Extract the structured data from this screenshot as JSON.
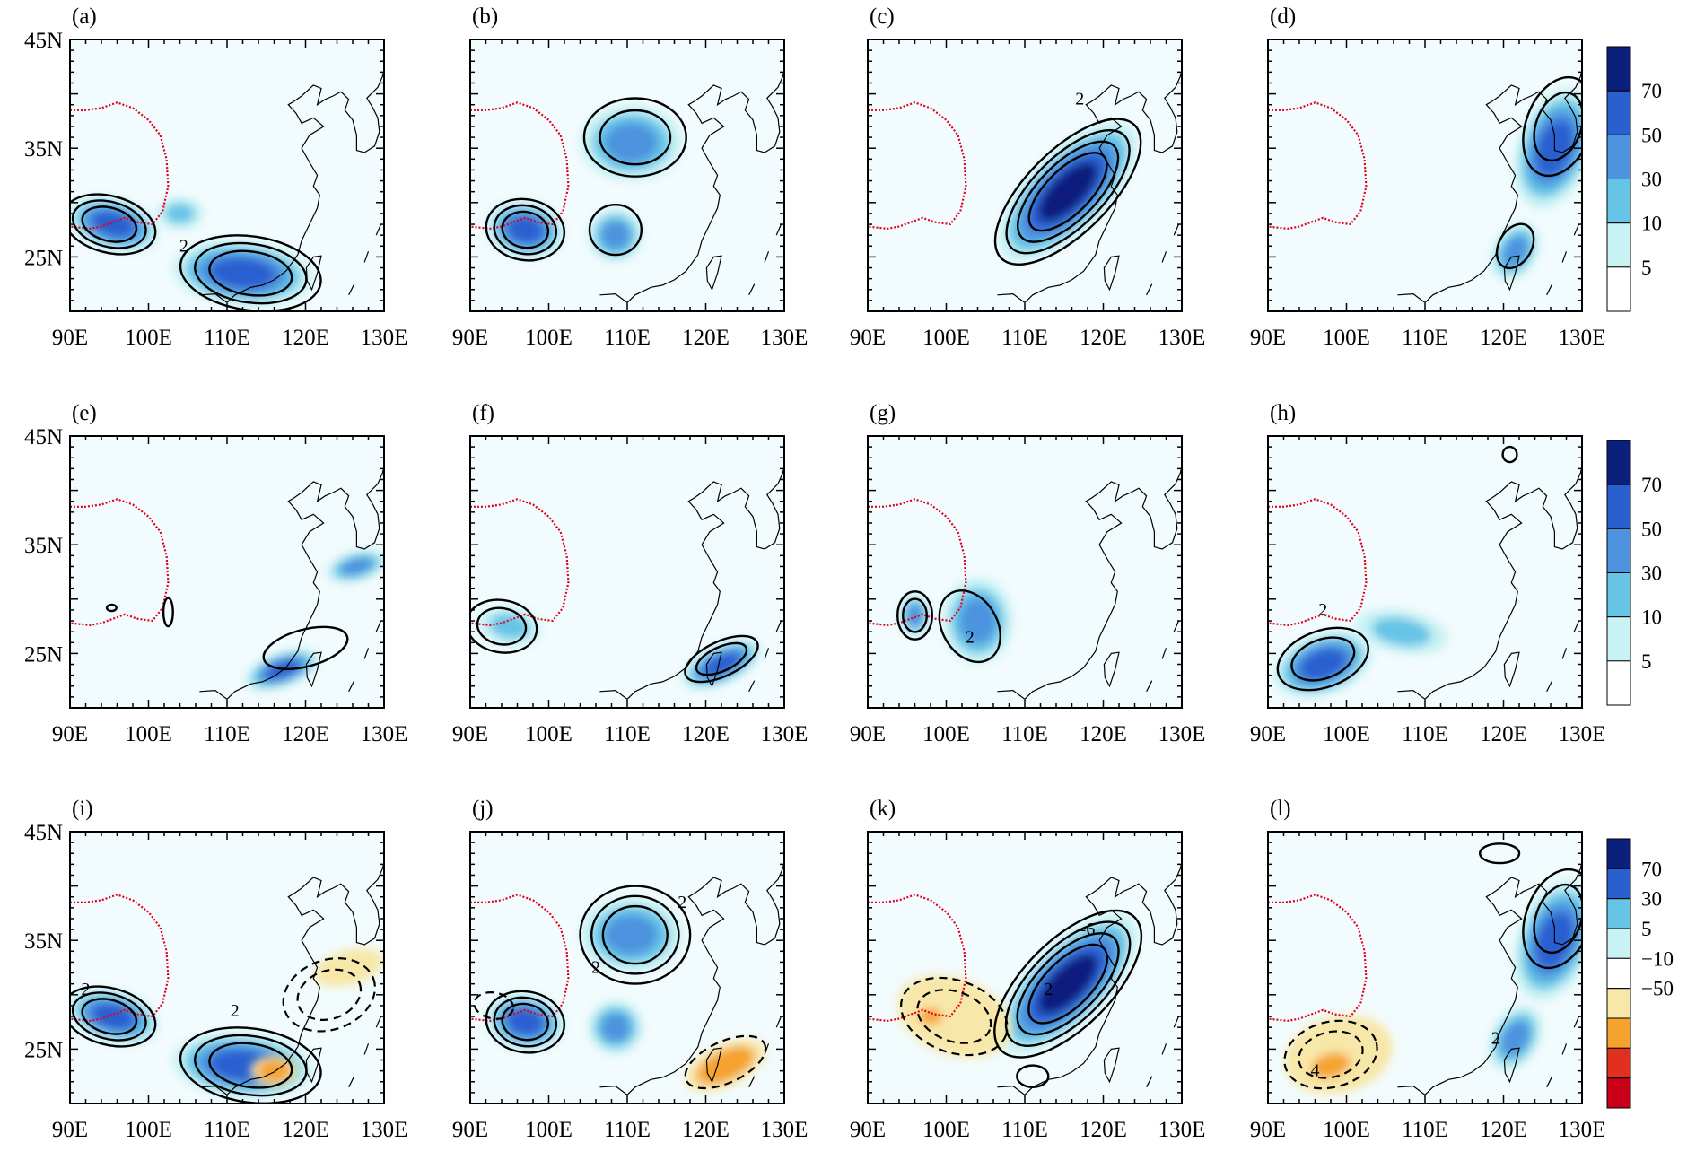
{
  "axes": {
    "lat_labels": [
      "45N",
      "35N",
      "25N"
    ],
    "lon_labels": [
      "90E",
      "100E",
      "110E",
      "120E",
      "130E"
    ]
  },
  "colorbars": [
    {
      "rows": [
        0,
        1
      ],
      "ticks": [
        "70",
        "50",
        "30",
        "10",
        "5"
      ],
      "colors": [
        "#0b1f7d",
        "#2a5fd0",
        "#4d93df",
        "#66c5e6",
        "#c8f2f4",
        "#ffffff"
      ]
    },
    {
      "rows": [
        2
      ],
      "ticks": [
        "70",
        "30",
        "5",
        "−10",
        "−50"
      ],
      "colors": [
        "#0b1f7d",
        "#2a5fd0",
        "#66c5e6",
        "#c8f2f4",
        "#ffffff",
        "#f7e7a8",
        "#f5a22e",
        "#e2301f",
        "#c8001a"
      ]
    }
  ],
  "panels": [
    {
      "label": "(a)",
      "blobs": [
        {
          "lon": 95.5,
          "lat": 28,
          "rx": 6,
          "ry": 2.4,
          "rot": 15,
          "level": 4
        },
        {
          "lon": 112,
          "lat": 23.5,
          "rx": 9,
          "ry": 3,
          "rot": 5,
          "level": 4
        },
        {
          "lon": 104,
          "lat": 29,
          "rx": 3,
          "ry": 1.5,
          "rot": 0,
          "level": 2
        }
      ],
      "contours": [
        {
          "lon": 95,
          "lat": 28,
          "rx": 6,
          "ry": 2.6,
          "rot": 15,
          "n": 3,
          "dash": false
        },
        {
          "lon": 113,
          "lat": 23.5,
          "rx": 9,
          "ry": 3.4,
          "rot": 8,
          "n": 3,
          "dash": false
        }
      ],
      "texts": [
        {
          "lon": 104.5,
          "lat": 25.5,
          "t": "2"
        }
      ]
    },
    {
      "label": "(b)",
      "blobs": [
        {
          "lon": 97,
          "lat": 27.5,
          "rx": 5,
          "ry": 2.6,
          "rot": 10,
          "level": 4
        },
        {
          "lon": 110.5,
          "lat": 35.5,
          "rx": 6.5,
          "ry": 3.5,
          "rot": 0,
          "level": 3
        },
        {
          "lon": 108.5,
          "lat": 27,
          "rx": 3.5,
          "ry": 2.5,
          "rot": 0,
          "level": 3
        }
      ],
      "contours": [
        {
          "lon": 97,
          "lat": 27.5,
          "rx": 5,
          "ry": 2.8,
          "rot": 10,
          "n": 3,
          "dash": false
        },
        {
          "lon": 111,
          "lat": 36,
          "rx": 6.5,
          "ry": 3.6,
          "rot": 0,
          "n": 2,
          "dash": false
        },
        {
          "lon": 108.5,
          "lat": 27.5,
          "rx": 3.3,
          "ry": 2.3,
          "rot": 0,
          "n": 1,
          "dash": false
        }
      ],
      "texts": []
    },
    {
      "label": "(c)",
      "blobs": [
        {
          "lon": 115.5,
          "lat": 31,
          "rx": 11.5,
          "ry": 3.6,
          "rot": -45,
          "level": 5
        }
      ],
      "contours": [
        {
          "lon": 115.5,
          "lat": 31,
          "rx": 12,
          "ry": 3.8,
          "rot": -45,
          "n": 4,
          "dash": false
        }
      ],
      "texts": [
        {
          "lon": 117,
          "lat": 39,
          "t": "2"
        }
      ]
    },
    {
      "label": "(d)",
      "blobs": [
        {
          "lon": 126.5,
          "lat": 35,
          "rx": 8,
          "ry": 3.4,
          "rot": -70,
          "level": 4
        },
        {
          "lon": 121.5,
          "lat": 25.5,
          "rx": 4,
          "ry": 2,
          "rot": -60,
          "level": 3
        }
      ],
      "contours": [
        {
          "lon": 127,
          "lat": 37,
          "rx": 6.5,
          "ry": 3,
          "rot": -70,
          "n": 2,
          "dash": false
        },
        {
          "lon": 121.5,
          "lat": 26,
          "rx": 3,
          "ry": 1.5,
          "rot": -60,
          "n": 1,
          "dash": false
        }
      ],
      "texts": []
    },
    {
      "label": "(e)",
      "blobs": [
        {
          "lon": 117,
          "lat": 23.5,
          "rx": 5,
          "ry": 1.6,
          "rot": -20,
          "level": 4
        },
        {
          "lon": 126.5,
          "lat": 33,
          "rx": 4,
          "ry": 1.4,
          "rot": -15,
          "level": 3
        }
      ],
      "contours": [
        {
          "lon": 120,
          "lat": 25.5,
          "rx": 5.5,
          "ry": 1.7,
          "rot": -15,
          "n": 1,
          "dash": false
        },
        {
          "lon": 95.3,
          "lat": 29.2,
          "rx": 0.6,
          "ry": 0.3,
          "rot": 0,
          "n": 1,
          "dash": false
        },
        {
          "lon": 102.5,
          "lat": 28.8,
          "rx": 0.6,
          "ry": 1.3,
          "rot": 0,
          "n": 1,
          "dash": false
        }
      ],
      "texts": []
    },
    {
      "label": "(f)",
      "blobs": [
        {
          "lon": 122,
          "lat": 24,
          "rx": 5.5,
          "ry": 1.8,
          "rot": -25,
          "level": 4
        },
        {
          "lon": 95,
          "lat": 27.5,
          "rx": 4,
          "ry": 1.8,
          "rot": 10,
          "level": 2
        }
      ],
      "contours": [
        {
          "lon": 122,
          "lat": 24.5,
          "rx": 5,
          "ry": 1.6,
          "rot": -25,
          "n": 2,
          "dash": false
        },
        {
          "lon": 94,
          "lat": 27.5,
          "rx": 4.5,
          "ry": 2.4,
          "rot": 10,
          "n": 2,
          "dash": false
        }
      ],
      "texts": []
    },
    {
      "label": "(g)",
      "blobs": [
        {
          "lon": 96,
          "lat": 28.5,
          "rx": 2,
          "ry": 2,
          "rot": 0,
          "level": 3
        },
        {
          "lon": 104,
          "lat": 28,
          "rx": 4.5,
          "ry": 4,
          "rot": 0,
          "level": 3
        }
      ],
      "contours": [
        {
          "lon": 96,
          "lat": 28.5,
          "rx": 2.2,
          "ry": 2.2,
          "rot": 0,
          "n": 2,
          "dash": false
        },
        {
          "lon": 103,
          "lat": 27.5,
          "rx": 3.5,
          "ry": 3.5,
          "rot": -30,
          "n": 1,
          "dash": false
        }
      ],
      "texts": [
        {
          "lon": 103,
          "lat": 26,
          "t": "2"
        }
      ]
    },
    {
      "label": "(h)",
      "blobs": [
        {
          "lon": 97,
          "lat": 24,
          "rx": 6.5,
          "ry": 2.8,
          "rot": -20,
          "level": 4
        },
        {
          "lon": 107,
          "lat": 27,
          "rx": 6,
          "ry": 2,
          "rot": 10,
          "level": 2
        }
      ],
      "contours": [
        {
          "lon": 97,
          "lat": 24.5,
          "rx": 6,
          "ry": 2.6,
          "rot": -20,
          "n": 2,
          "dash": false
        },
        {
          "lon": 120.8,
          "lat": 43.3,
          "rx": 0.9,
          "ry": 0.7,
          "rot": 0,
          "n": 1,
          "dash": false
        }
      ],
      "texts": [
        {
          "lon": 97,
          "lat": 28.5,
          "t": "2"
        }
      ]
    },
    {
      "label": "(i)",
      "blobs": [
        {
          "lon": 95.5,
          "lat": 28,
          "rx": 6,
          "ry": 2.4,
          "rot": 15,
          "level": 4
        },
        {
          "lon": 112,
          "lat": 23.5,
          "rx": 9,
          "ry": 3,
          "rot": 5,
          "level": 4
        },
        {
          "lon": 125.5,
          "lat": 32.5,
          "rx": 4.5,
          "ry": 1.6,
          "rot": -15,
          "level": -1
        },
        {
          "lon": 116,
          "lat": 23,
          "rx": 3,
          "ry": 1.4,
          "rot": 0,
          "level": -2
        }
      ],
      "contours": [
        {
          "lon": 95,
          "lat": 28,
          "rx": 6,
          "ry": 2.6,
          "rot": 15,
          "n": 3,
          "dash": false
        },
        {
          "lon": 113,
          "lat": 23.5,
          "rx": 9,
          "ry": 3.4,
          "rot": 8,
          "n": 3,
          "dash": false
        },
        {
          "lon": 123,
          "lat": 30,
          "rx": 6,
          "ry": 3.2,
          "rot": -20,
          "n": 2,
          "dash": true
        }
      ],
      "texts": [
        {
          "lon": 92,
          "lat": 30,
          "t": "2"
        },
        {
          "lon": 111,
          "lat": 28,
          "t": "2"
        }
      ]
    },
    {
      "label": "(j)",
      "blobs": [
        {
          "lon": 97,
          "lat": 27.5,
          "rx": 5,
          "ry": 2.6,
          "rot": 10,
          "level": 4
        },
        {
          "lon": 110.5,
          "lat": 35.5,
          "rx": 6.5,
          "ry": 3.5,
          "rot": 0,
          "level": 3
        },
        {
          "lon": 108.5,
          "lat": 27,
          "rx": 3.5,
          "ry": 2.5,
          "rot": 0,
          "level": 3
        },
        {
          "lon": 122.5,
          "lat": 23.5,
          "rx": 5.5,
          "ry": 1.9,
          "rot": -25,
          "level": -2
        }
      ],
      "contours": [
        {
          "lon": 97,
          "lat": 27.5,
          "rx": 5,
          "ry": 2.8,
          "rot": 10,
          "n": 3,
          "dash": false
        },
        {
          "lon": 111,
          "lat": 35.5,
          "rx": 7,
          "ry": 4.5,
          "rot": 0,
          "n": 3,
          "dash": false
        },
        {
          "lon": 122.5,
          "lat": 23.8,
          "rx": 5.5,
          "ry": 1.9,
          "rot": -25,
          "n": 1,
          "dash": true
        },
        {
          "lon": 93,
          "lat": 29,
          "rx": 2.5,
          "ry": 1.2,
          "rot": 10,
          "n": 1,
          "dash": true
        }
      ],
      "texts": [
        {
          "lon": 106,
          "lat": 32,
          "t": "2"
        },
        {
          "lon": 117,
          "lat": 38,
          "t": "2"
        }
      ]
    },
    {
      "label": "(k)",
      "blobs": [
        {
          "lon": 115.5,
          "lat": 31,
          "rx": 11.5,
          "ry": 3.6,
          "rot": -45,
          "level": 5
        },
        {
          "lon": 101,
          "lat": 28,
          "rx": 7.5,
          "ry": 3.5,
          "rot": 20,
          "level": -1
        },
        {
          "lon": 98,
          "lat": 28,
          "rx": 2,
          "ry": 1,
          "rot": 0,
          "level": -2
        }
      ],
      "contours": [
        {
          "lon": 115.5,
          "lat": 31,
          "rx": 12,
          "ry": 4,
          "rot": -45,
          "n": 4,
          "dash": false
        },
        {
          "lon": 101,
          "lat": 28,
          "rx": 7,
          "ry": 3.3,
          "rot": 20,
          "n": 2,
          "dash": true
        },
        {
          "lon": 111,
          "lat": 22.5,
          "rx": 2,
          "ry": 1,
          "rot": 0,
          "n": 1,
          "dash": false
        }
      ],
      "texts": [
        {
          "lon": 118,
          "lat": 35.5,
          "t": "-6"
        },
        {
          "lon": 113,
          "lat": 30,
          "t": "2"
        }
      ]
    },
    {
      "label": "(l)",
      "blobs": [
        {
          "lon": 126.5,
          "lat": 35,
          "rx": 8,
          "ry": 3.4,
          "rot": -70,
          "level": 4
        },
        {
          "lon": 121.5,
          "lat": 26,
          "rx": 4.5,
          "ry": 2.2,
          "rot": -60,
          "level": 3
        },
        {
          "lon": 99,
          "lat": 24.5,
          "rx": 7,
          "ry": 3.5,
          "rot": -15,
          "level": -1
        },
        {
          "lon": 98,
          "lat": 23.5,
          "rx": 3.5,
          "ry": 1.5,
          "rot": -15,
          "level": -2
        }
      ],
      "contours": [
        {
          "lon": 127,
          "lat": 37,
          "rx": 6.5,
          "ry": 3,
          "rot": -70,
          "n": 2,
          "dash": false
        },
        {
          "lon": 98,
          "lat": 24.5,
          "rx": 6,
          "ry": 3,
          "rot": -15,
          "n": 2,
          "dash": true
        },
        {
          "lon": 119.5,
          "lat": 43,
          "rx": 2.5,
          "ry": 0.9,
          "rot": 0,
          "n": 1,
          "dash": false
        }
      ],
      "texts": [
        {
          "lon": 96,
          "lat": 22.5,
          "t": "4"
        },
        {
          "lon": 119,
          "lat": 25.5,
          "t": "2"
        }
      ]
    }
  ]
}
